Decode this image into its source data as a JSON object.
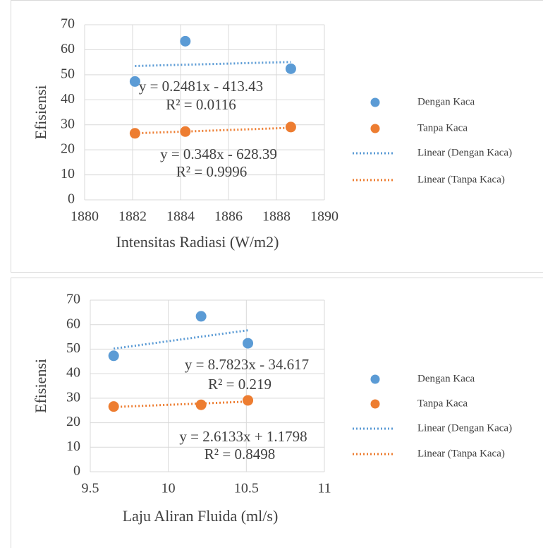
{
  "chart_data": [
    {
      "type": "scatter",
      "x_label": "Intensitas Radiasi (W/m2)",
      "y_label": "Efisiensi",
      "xlim": [
        1880,
        1890
      ],
      "xticks": [
        1880,
        1882,
        1884,
        1886,
        1888,
        1890
      ],
      "ylim": [
        0,
        70
      ],
      "yticks": [
        0,
        10,
        20,
        30,
        40,
        50,
        60,
        70
      ],
      "grid": true,
      "series": [
        {
          "name": "Dengan Kaca",
          "color": "#5b9bd5",
          "x": [
            1882.1,
            1884.2,
            1888.6
          ],
          "values": [
            47.3,
            63.4,
            52.4
          ]
        },
        {
          "name": "Tanpa Kaca",
          "color": "#ed7d31",
          "x": [
            1882.1,
            1884.2,
            1888.6
          ],
          "values": [
            26.6,
            27.3,
            29.1
          ]
        },
        {
          "name": "Linear (Dengan Kaca)",
          "color": "#5b9bd5",
          "style": "trendline",
          "x": [
            1882.1,
            1888.6
          ],
          "values": [
            53.5,
            55.1
          ]
        },
        {
          "name": "Linear (Tanpa Kaca)",
          "color": "#ed7d31",
          "style": "trendline",
          "x": [
            1882.1,
            1888.6
          ],
          "values": [
            26.6,
            28.8
          ]
        }
      ],
      "annotations": [
        "y = 0.2481x - 413.43",
        "R² = 0.0116",
        "y = 0.348x - 628.39",
        "R² = 0.9996"
      ]
    },
    {
      "type": "scatter",
      "x_label": "Laju Aliran Fluida (ml/s)",
      "y_label": "Efisiensi",
      "xlim": [
        9.5,
        11
      ],
      "xticks": [
        9.5,
        10,
        10.5,
        11
      ],
      "ylim": [
        0,
        70
      ],
      "yticks": [
        0,
        10,
        20,
        30,
        40,
        50,
        60,
        70
      ],
      "grid": true,
      "series": [
        {
          "name": "Dengan Kaca",
          "color": "#5b9bd5",
          "x": [
            9.65,
            10.21,
            10.51
          ],
          "values": [
            47.3,
            63.4,
            52.4
          ]
        },
        {
          "name": "Tanpa Kaca",
          "color": "#ed7d31",
          "x": [
            9.65,
            10.21,
            10.51
          ],
          "values": [
            26.6,
            27.3,
            29.1
          ]
        },
        {
          "name": "Linear (Dengan Kaca)",
          "color": "#5b9bd5",
          "style": "trendline",
          "x": [
            9.65,
            10.51
          ],
          "values": [
            50.2,
            57.7
          ]
        },
        {
          "name": "Linear (Tanpa Kaca)",
          "color": "#ed7d31",
          "style": "trendline",
          "x": [
            9.65,
            10.51
          ],
          "values": [
            26.4,
            28.6
          ]
        }
      ],
      "annotations": [
        "y = 8.7823x - 34.617",
        "R² = 0.219",
        "y = 2.6133x + 1.1798",
        "R² = 0.8498"
      ]
    }
  ]
}
